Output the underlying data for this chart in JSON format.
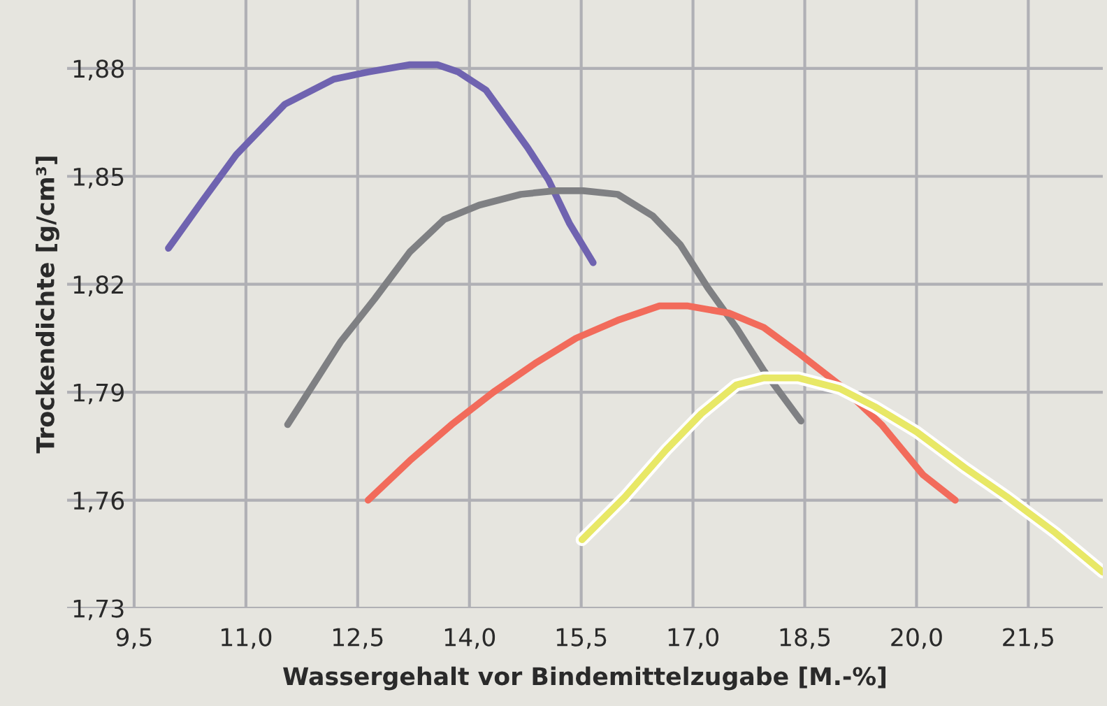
{
  "chart_data": {
    "type": "line",
    "xlabel": "Wassergehalt vor Bindemittelzugabe [M.-%]",
    "ylabel": "Trockendichte [g/cm³]",
    "xlim": [
      8.6,
      22.5
    ],
    "ylim": [
      1.73,
      1.899
    ],
    "xticks": [
      {
        "value": 9.5,
        "label": "9,5"
      },
      {
        "value": 11.0,
        "label": "11,0"
      },
      {
        "value": 12.5,
        "label": "12,5"
      },
      {
        "value": 14.0,
        "label": "14,0"
      },
      {
        "value": 15.5,
        "label": "15,5"
      },
      {
        "value": 17.0,
        "label": "17,0"
      },
      {
        "value": 18.5,
        "label": "18,5"
      },
      {
        "value": 20.0,
        "label": "20,0"
      },
      {
        "value": 21.5,
        "label": "21,5"
      }
    ],
    "yticks": [
      {
        "value": 1.73,
        "label": "1,73"
      },
      {
        "value": 1.76,
        "label": "1,76"
      },
      {
        "value": 1.79,
        "label": "1,79"
      },
      {
        "value": 1.82,
        "label": "1,82"
      },
      {
        "value": 1.85,
        "label": "1,85"
      },
      {
        "value": 1.88,
        "label": "1,88"
      }
    ],
    "grid": true,
    "marker": "none",
    "line_style": "solid",
    "series": [
      {
        "color": "#6f63b0",
        "x": [
          9.96,
          10.41,
          10.87,
          11.52,
          12.18,
          12.64,
          13.2,
          13.57,
          13.85,
          14.22,
          14.5,
          14.78,
          15.06,
          15.34,
          15.66
        ],
        "values": [
          1.83,
          1.843,
          1.856,
          1.87,
          1.877,
          1.879,
          1.881,
          1.881,
          1.879,
          1.874,
          1.866,
          1.858,
          1.849,
          1.837,
          1.826
        ]
      },
      {
        "color": "#7f8083",
        "x": [
          11.56,
          11.9,
          12.27,
          12.73,
          13.2,
          13.66,
          14.13,
          14.69,
          15.15,
          15.53,
          15.99,
          16.46,
          16.83,
          17.2,
          17.58,
          17.95,
          18.45
        ],
        "values": [
          1.781,
          1.792,
          1.804,
          1.816,
          1.829,
          1.838,
          1.842,
          1.845,
          1.846,
          1.846,
          1.845,
          1.839,
          1.831,
          1.819,
          1.808,
          1.796,
          1.782
        ]
      },
      {
        "color": "#f26b5b",
        "x": [
          12.64,
          13.2,
          13.76,
          14.32,
          14.88,
          15.43,
          15.99,
          16.55,
          16.92,
          17.48,
          17.95,
          18.41,
          18.97,
          19.53,
          20.09,
          20.52
        ],
        "values": [
          1.76,
          1.771,
          1.781,
          1.79,
          1.798,
          1.805,
          1.81,
          1.814,
          1.814,
          1.812,
          1.808,
          1.801,
          1.792,
          1.781,
          1.767,
          1.76
        ]
      },
      {
        "color": "#e8e866",
        "x": [
          15.51,
          16.09,
          16.64,
          17.11,
          17.58,
          17.95,
          18.41,
          18.97,
          19.44,
          20.0,
          20.65,
          21.21,
          21.86,
          22.5
        ],
        "values": [
          1.749,
          1.761,
          1.774,
          1.784,
          1.792,
          1.794,
          1.794,
          1.791,
          1.786,
          1.779,
          1.769,
          1.761,
          1.751,
          1.74
        ]
      }
    ]
  }
}
